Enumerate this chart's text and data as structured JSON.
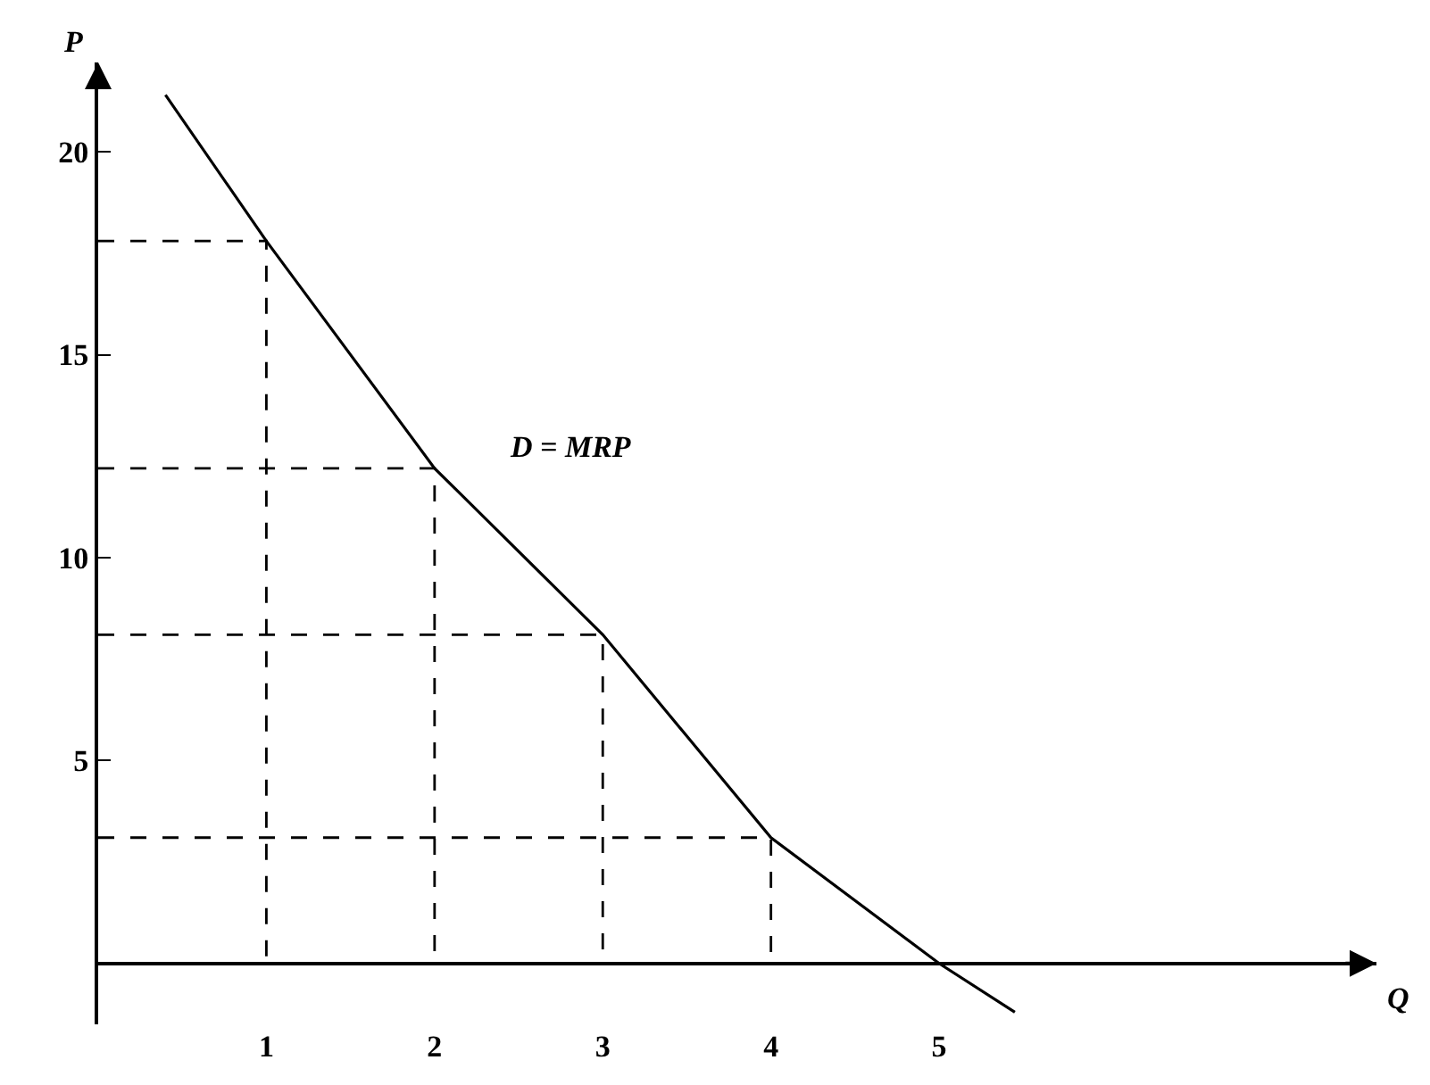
{
  "chart_data": {
    "type": "line",
    "xlabel": "Q",
    "ylabel": "P",
    "series": [
      {
        "x": [
          0.4,
          1,
          2,
          3,
          4,
          5,
          5.45
        ],
        "values": [
          21.4,
          17.8,
          12.2,
          8.1,
          3.1,
          0,
          -1.2
        ],
        "color": "#000000",
        "line_style": "solid"
      },
      {
        "x": [
          0,
          1,
          1
        ],
        "values": [
          17.8,
          17.8,
          0
        ],
        "color": "#000000",
        "line_style": "dashed"
      },
      {
        "x": [
          0,
          2,
          2
        ],
        "values": [
          12.2,
          12.2,
          0
        ],
        "color": "#000000",
        "line_style": "dashed"
      },
      {
        "x": [
          0,
          3,
          3
        ],
        "values": [
          8.1,
          8.1,
          0
        ],
        "color": "#000000",
        "line_style": "dashed"
      },
      {
        "x": [
          0,
          4,
          4
        ],
        "values": [
          3.1,
          3.1,
          0
        ],
        "color": "#000000",
        "line_style": "dashed"
      }
    ],
    "xlim": [
      0,
      7.6
    ],
    "ylim": [
      -1.5,
      22.2
    ],
    "xticks": [
      1,
      2,
      3,
      4,
      5
    ],
    "yticks": [
      5,
      10,
      15,
      20
    ],
    "annotations": [
      "D = MRP"
    ]
  }
}
